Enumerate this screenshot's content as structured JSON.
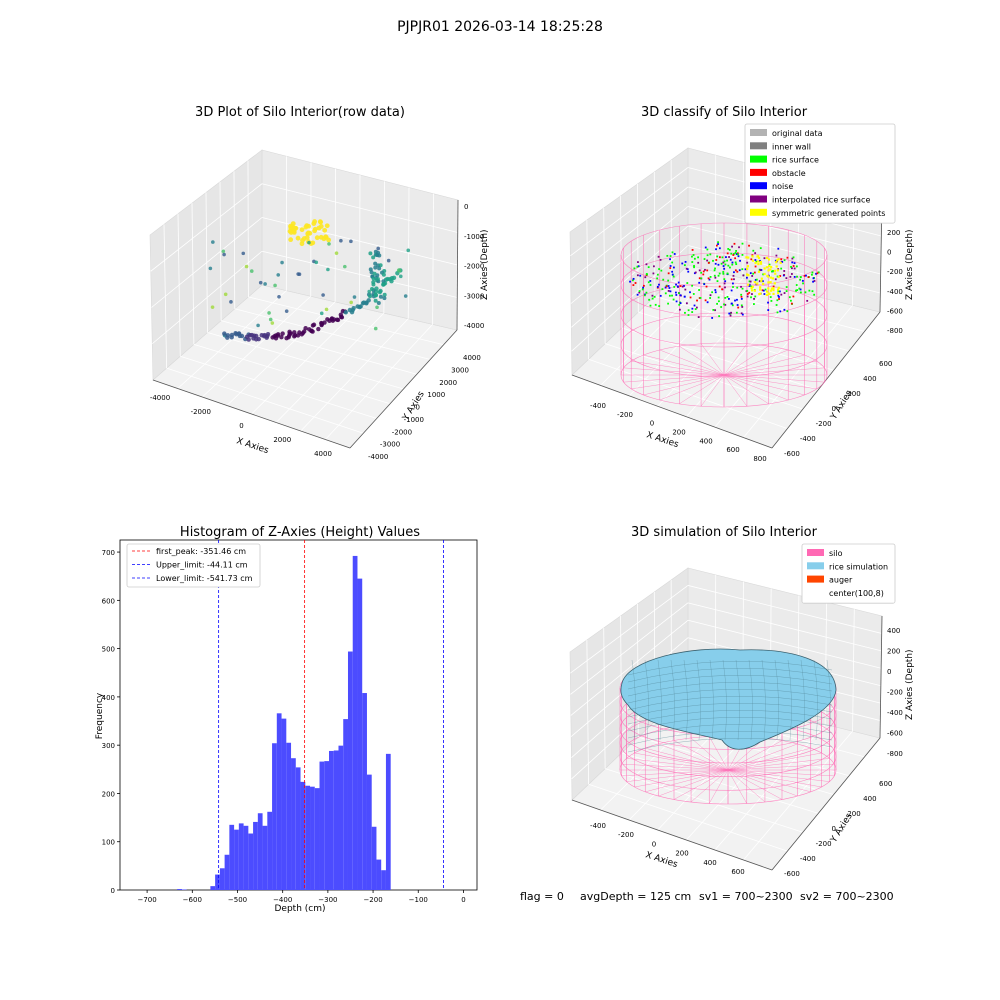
{
  "figure": {
    "suptitle": "PJPJR01 2026-03-14 18:25:28",
    "status": {
      "flag": "flag = 0",
      "avg_depth": "avgDepth = 125 cm",
      "sv1": "sv1 = 700~2300",
      "sv2": "sv2 = 700~2300"
    }
  },
  "colors": {
    "histogram_bar": "#4c4cff",
    "first_peak_line": "#ff0000",
    "limit_lines": "#0000ff",
    "original_data": "#b3b3b3",
    "inner_wall": "#808080",
    "rice_surface": "#00ff00",
    "obstacle": "#ff0000",
    "noise": "#0000ff",
    "interpolated_rice_surface": "#800080",
    "symmetric_generated_points": "#ffff00",
    "silo": "#ff69b4",
    "rice_simulation": "#87ceeb",
    "auger": "#ff4500"
  },
  "chart_data": [
    {
      "type": "scatter",
      "projection": "3d",
      "title": "3D Plot of Silo Interior(row data)",
      "xlabel": "X Axies",
      "ylabel": "Y Axies",
      "zlabel": "Z Axies (Depth)",
      "xticks": [
        "-4000",
        "-2000",
        "0",
        "2000",
        "4000"
      ],
      "yticks": [
        "-4000",
        "-3000",
        "-2000",
        "-1000",
        "0",
        "1000",
        "2000",
        "3000",
        "4000"
      ],
      "zticks": [
        "0",
        "-1000",
        "-2000",
        "-3000",
        "-4000"
      ],
      "grid": true,
      "colormap": "viridis"
    },
    {
      "type": "scatter",
      "projection": "3d",
      "title": "3D classify of Silo Interior",
      "xlabel": "X Axies",
      "ylabel": "Y Axies",
      "zlabel": "Z Axies (Depth)",
      "xticks": [
        "-400",
        "-200",
        "0",
        "200",
        "400",
        "600",
        "800"
      ],
      "yticks": [
        "-600",
        "-400",
        "-200",
        "0",
        "200",
        "400",
        "600"
      ],
      "zticks": [
        "200",
        "0",
        "-200",
        "-400",
        "-600",
        "-800"
      ],
      "grid": true,
      "legend_position": "top-right",
      "legend": [
        {
          "label": "original data",
          "color": "#b3b3b3"
        },
        {
          "label": "inner wall",
          "color": "#808080"
        },
        {
          "label": "rice surface",
          "color": "#00ff00"
        },
        {
          "label": "obstacle",
          "color": "#ff0000"
        },
        {
          "label": "noise",
          "color": "#0000ff"
        },
        {
          "label": "interpolated rice surface",
          "color": "#800080"
        },
        {
          "label": "symmetric generated points",
          "color": "#ffff00"
        }
      ]
    },
    {
      "type": "bar",
      "title": "Histogram of Z-Axies (Height) Values",
      "xlabel": "Depth (cm)",
      "ylabel": "Frequency",
      "xlim": [
        -760,
        30
      ],
      "ylim": [
        0,
        725
      ],
      "xticks": [
        -700,
        -600,
        -500,
        -400,
        -300,
        -200,
        -100,
        0
      ],
      "yticks": [
        0,
        100,
        200,
        300,
        400,
        500,
        600,
        700
      ],
      "bin_width": 10.5,
      "bins": [
        {
          "x": -633.5,
          "value": 2
        },
        {
          "x": -623.0,
          "value": 1
        },
        {
          "x": -560.0,
          "value": 8
        },
        {
          "x": -549.5,
          "value": 32
        },
        {
          "x": -539.0,
          "value": 45
        },
        {
          "x": -528.5,
          "value": 73
        },
        {
          "x": -518.0,
          "value": 135
        },
        {
          "x": -507.5,
          "value": 125
        },
        {
          "x": -497.0,
          "value": 138
        },
        {
          "x": -486.5,
          "value": 133
        },
        {
          "x": -476.0,
          "value": 117
        },
        {
          "x": -465.5,
          "value": 141
        },
        {
          "x": -455.0,
          "value": 159
        },
        {
          "x": -444.5,
          "value": 133
        },
        {
          "x": -434.0,
          "value": 162
        },
        {
          "x": -423.5,
          "value": 304
        },
        {
          "x": -413.0,
          "value": 366
        },
        {
          "x": -402.5,
          "value": 355
        },
        {
          "x": -392.0,
          "value": 305
        },
        {
          "x": -381.5,
          "value": 273
        },
        {
          "x": -371.0,
          "value": 254
        },
        {
          "x": -360.5,
          "value": 224
        },
        {
          "x": -350.0,
          "value": 216
        },
        {
          "x": -339.5,
          "value": 214
        },
        {
          "x": -329.0,
          "value": 211
        },
        {
          "x": -318.5,
          "value": 266
        },
        {
          "x": -308.0,
          "value": 267
        },
        {
          "x": -297.5,
          "value": 288
        },
        {
          "x": -287.0,
          "value": 289
        },
        {
          "x": -276.5,
          "value": 299
        },
        {
          "x": -266.0,
          "value": 354
        },
        {
          "x": -255.5,
          "value": 494
        },
        {
          "x": -245.0,
          "value": 692
        },
        {
          "x": -234.5,
          "value": 645
        },
        {
          "x": -224.0,
          "value": 408
        },
        {
          "x": -213.5,
          "value": 239
        },
        {
          "x": -203.0,
          "value": 131
        },
        {
          "x": -192.5,
          "value": 63
        },
        {
          "x": -182.0,
          "value": 41
        },
        {
          "x": -171.5,
          "value": 282
        }
      ],
      "vlines": [
        {
          "label": "first_peak: -351.46 cm",
          "x": -351.46,
          "color": "#ff0000"
        },
        {
          "label": "Upper_limit: -44.11 cm",
          "x": -44.11,
          "color": "#0000ff"
        },
        {
          "label": "Lower_limit: -541.73 cm",
          "x": -541.73,
          "color": "#0000ff"
        }
      ],
      "legend_position": "top-left"
    },
    {
      "type": "surface",
      "projection": "3d",
      "title": "3D simulation of Silo Interior",
      "xlabel": "X Axies",
      "ylabel": "Y Axies",
      "zlabel": "Z Axies (Depth)",
      "xticks": [
        "-400",
        "-200",
        "0",
        "200",
        "400",
        "600"
      ],
      "yticks": [
        "-600",
        "-400",
        "-200",
        "0",
        "200",
        "400",
        "600"
      ],
      "zticks": [
        "400",
        "200",
        "0",
        "-200",
        "-400",
        "-600",
        "-800"
      ],
      "grid": true,
      "legend_position": "top-right",
      "legend": [
        {
          "label": "silo",
          "color": "#ff69b4"
        },
        {
          "label": "rice simulation",
          "color": "#87ceeb"
        },
        {
          "label": "auger",
          "color": "#ff4500"
        },
        {
          "label": "center(100,8)",
          "color": ""
        }
      ]
    }
  ]
}
